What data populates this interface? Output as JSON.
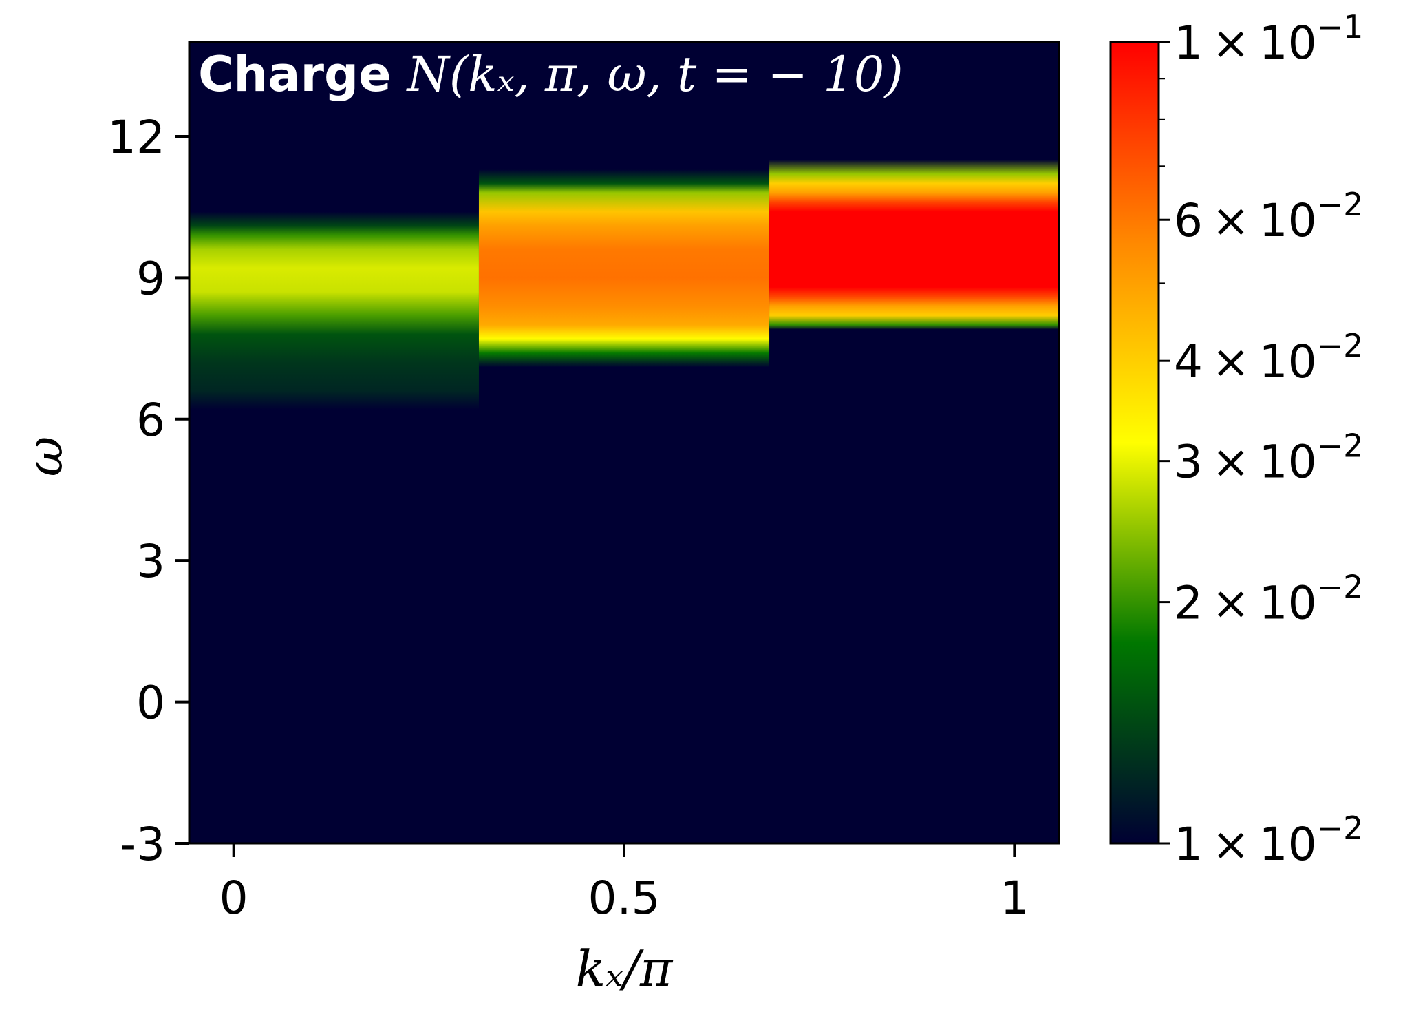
{
  "chart_data": {
    "type": "heatmap",
    "title": {
      "bold_part": "Charge",
      "math_part": "N(kₓ, π, ω, t = − 10)"
    },
    "xlabel": "kₓ/π",
    "ylabel": "ω",
    "xlim": [
      -0.057,
      1.057
    ],
    "ylim": [
      -3,
      14
    ],
    "xticks": [
      {
        "value": 0,
        "label": "0"
      },
      {
        "value": 0.5,
        "label": "0.5"
      },
      {
        "value": 1,
        "label": "1"
      }
    ],
    "yticks": [
      {
        "value": -3,
        "label": "-3"
      },
      {
        "value": 0,
        "label": "0"
      },
      {
        "value": 3,
        "label": "3"
      },
      {
        "value": 6,
        "label": "6"
      },
      {
        "value": 9,
        "label": "9"
      },
      {
        "value": 12,
        "label": "12"
      }
    ],
    "background_color": "#000033",
    "colorbar": {
      "scale": "log",
      "range": [
        0.01,
        0.1
      ],
      "colors": [
        "#000033",
        "#007700",
        "#ffff00",
        "#ff8800",
        "#ff0000"
      ],
      "ticks": [
        {
          "value": 0.1,
          "mantissa": "1",
          "exponent": "−1"
        },
        {
          "value": 0.06,
          "mantissa": "6",
          "exponent": "−2"
        },
        {
          "value": 0.04,
          "mantissa": "4",
          "exponent": "−2"
        },
        {
          "value": 0.03,
          "mantissa": "3",
          "exponent": "−2"
        },
        {
          "value": 0.02,
          "mantissa": "2",
          "exponent": "−2"
        },
        {
          "value": 0.01,
          "mantissa": "1",
          "exponent": "−2"
        }
      ],
      "minor_ticks": [
        0.05,
        0.07,
        0.08,
        0.09
      ]
    },
    "columns": [
      {
        "k": 0,
        "x_range": [
          -0.057,
          0.314
        ],
        "omega_range": [
          6.2,
          10.4
        ],
        "profile": [
          [
            6.2,
            0.01
          ],
          [
            6.6,
            0.012
          ],
          [
            7.2,
            0.013
          ],
          [
            7.8,
            0.015
          ],
          [
            8.2,
            0.021
          ],
          [
            8.7,
            0.028
          ],
          [
            9.2,
            0.029
          ],
          [
            9.6,
            0.026
          ],
          [
            9.9,
            0.02
          ],
          [
            10.1,
            0.014
          ],
          [
            10.4,
            0.01
          ]
        ]
      },
      {
        "k": 0.5,
        "x_range": [
          0.314,
          0.686
        ],
        "omega_range": [
          7.1,
          11.3
        ],
        "profile": [
          [
            7.1,
            0.01
          ],
          [
            7.4,
            0.018
          ],
          [
            7.7,
            0.032
          ],
          [
            8.0,
            0.048
          ],
          [
            8.4,
            0.055
          ],
          [
            9.0,
            0.062
          ],
          [
            9.6,
            0.06
          ],
          [
            10.1,
            0.05
          ],
          [
            10.4,
            0.042
          ],
          [
            10.8,
            0.025
          ],
          [
            11.0,
            0.015
          ],
          [
            11.3,
            0.01
          ]
        ]
      },
      {
        "k": 1,
        "x_range": [
          0.686,
          1.057
        ],
        "omega_range": [
          7.9,
          11.5
        ],
        "profile": [
          [
            7.9,
            0.01
          ],
          [
            8.0,
            0.02
          ],
          [
            8.2,
            0.04
          ],
          [
            8.4,
            0.05
          ],
          [
            8.6,
            0.075
          ],
          [
            8.8,
            0.1
          ],
          [
            10.4,
            0.1
          ],
          [
            10.6,
            0.075
          ],
          [
            10.8,
            0.05
          ],
          [
            11.0,
            0.04
          ],
          [
            11.2,
            0.025
          ],
          [
            11.5,
            0.01
          ]
        ]
      }
    ]
  }
}
